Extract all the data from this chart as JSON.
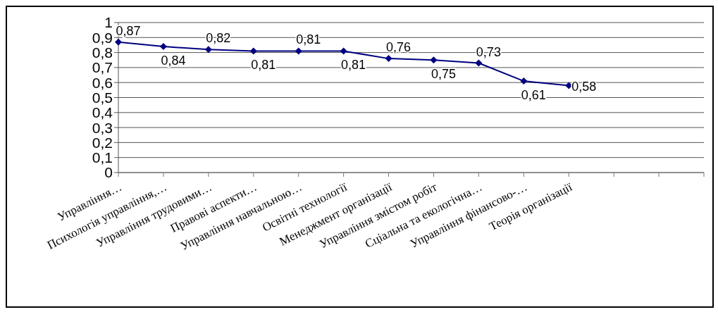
{
  "chart_data": {
    "type": "line",
    "categories": [
      "Управління…",
      "Психологія управління,…",
      "Управління трудовими…",
      "Правові аспекти…",
      "Управління навчальною…",
      "Освітні технології",
      "Менеджмент організації",
      "Управління змістом робіт",
      "Сціальна та екологічна…",
      "Управління фінансово-…",
      "Теорія організації",
      null,
      null,
      null
    ],
    "values": [
      0.87,
      0.84,
      0.82,
      0.81,
      0.81,
      0.81,
      0.76,
      0.75,
      0.73,
      0.61,
      0.58,
      null,
      null,
      null
    ],
    "value_labels": [
      "0,87",
      "0,84",
      "0,82",
      "0,81",
      "0,81",
      "0,81",
      "0,76",
      "0,75",
      "0,73",
      "0,61",
      "0,58",
      null,
      null,
      null
    ],
    "color": "#000080",
    "marker": "diamond",
    "line_style": "solid",
    "ylim": [
      0,
      1
    ],
    "yticks": [
      0,
      {
        "value": 0.1,
        "label": "0,1"
      },
      {
        "value": 0.2,
        "label": "0,2"
      },
      {
        "value": 0.3,
        "label": "0,3"
      },
      {
        "value": 0.4,
        "label": "0,4"
      },
      {
        "value": 0.5,
        "label": "0,5"
      },
      {
        "value": 0.6,
        "label": "0,6"
      },
      {
        "value": 0.7,
        "label": "0,7"
      },
      {
        "value": 0.8,
        "label": "0,8"
      },
      {
        "value": 0.9,
        "label": "0,9"
      },
      1
    ],
    "grid": "y"
  }
}
